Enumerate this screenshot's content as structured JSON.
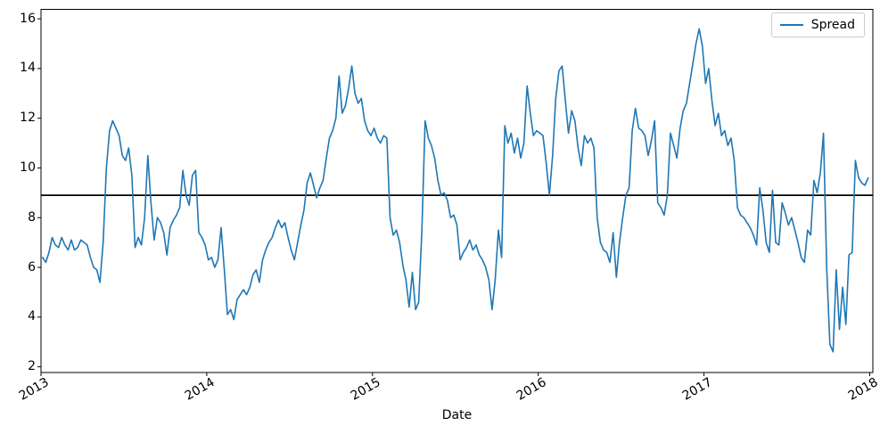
{
  "figure": {
    "xlabel": "Date",
    "legend": {
      "label": "Spread"
    },
    "background": "#ffffff",
    "spine_color": "#000000"
  },
  "chart_data": {
    "type": "line",
    "title": "",
    "xlabel": "Date",
    "ylabel": "",
    "grid": false,
    "legend_position": "upper right",
    "x_axis": {
      "min": 2013.0,
      "max": 2018.019,
      "ticks": [
        2013,
        2014,
        2015,
        2016,
        2017,
        2018
      ],
      "tick_labels": [
        "2013",
        "2014",
        "2015",
        "2016",
        "2017",
        "2018"
      ],
      "tick_rotation_deg": 30
    },
    "y_axis": {
      "min": 1.77,
      "max": 16.38,
      "ticks": [
        2,
        4,
        6,
        8,
        10,
        12,
        14,
        16
      ],
      "tick_labels": [
        "2",
        "4",
        "6",
        "8",
        "10",
        "12",
        "14",
        "16"
      ]
    },
    "hline": {
      "y": 8.9,
      "color": "#000000",
      "width": 1.8
    },
    "series": [
      {
        "name": "Spread",
        "color": "#1f77b4",
        "line_width": 1.6,
        "x_start_year": 2013.0,
        "x_step_years": 0.019231,
        "values": [
          6.4,
          6.2,
          6.6,
          7.2,
          6.9,
          6.8,
          7.2,
          6.9,
          6.7,
          7.1,
          6.7,
          6.8,
          7.1,
          7.0,
          6.9,
          6.4,
          6.0,
          5.9,
          5.4,
          7.0,
          10.0,
          11.5,
          11.9,
          11.6,
          11.3,
          10.5,
          10.3,
          10.8,
          9.7,
          6.8,
          7.2,
          6.9,
          8.0,
          10.5,
          8.6,
          7.1,
          8.0,
          7.8,
          7.4,
          6.5,
          7.6,
          7.9,
          8.1,
          8.4,
          9.9,
          8.9,
          8.5,
          9.7,
          9.9,
          7.4,
          7.2,
          6.9,
          6.3,
          6.4,
          6.0,
          6.3,
          7.6,
          5.9,
          4.1,
          4.3,
          3.9,
          4.7,
          4.9,
          5.1,
          4.9,
          5.2,
          5.7,
          5.9,
          5.4,
          6.3,
          6.7,
          7.0,
          7.2,
          7.6,
          7.9,
          7.6,
          7.8,
          7.2,
          6.7,
          6.3,
          7.0,
          7.7,
          8.3,
          9.4,
          9.8,
          9.3,
          8.8,
          9.2,
          9.5,
          10.4,
          11.2,
          11.5,
          12.0,
          13.7,
          12.2,
          12.5,
          13.2,
          14.1,
          13.0,
          12.6,
          12.8,
          11.9,
          11.5,
          11.3,
          11.6,
          11.2,
          11.0,
          11.3,
          11.2,
          8.0,
          7.3,
          7.5,
          7.0,
          6.1,
          5.5,
          4.4,
          5.8,
          4.3,
          4.6,
          7.5,
          11.9,
          11.2,
          10.9,
          10.4,
          9.5,
          8.9,
          9.0,
          8.7,
          8.0,
          8.1,
          7.7,
          6.3,
          6.6,
          6.8,
          7.1,
          6.7,
          6.9,
          6.5,
          6.3,
          6.0,
          5.5,
          4.3,
          5.5,
          7.5,
          6.4,
          11.7,
          11.0,
          11.4,
          10.6,
          11.2,
          10.4,
          11.0,
          13.3,
          12.2,
          11.3,
          11.5,
          11.4,
          11.3,
          10.2,
          8.9,
          10.5,
          12.8,
          13.9,
          14.1,
          12.7,
          11.4,
          12.3,
          11.9,
          10.8,
          10.1,
          11.3,
          11.0,
          11.2,
          10.8,
          8.0,
          7.0,
          6.7,
          6.6,
          6.2,
          7.4,
          5.6,
          7.0,
          8.0,
          8.9,
          9.2,
          11.5,
          12.4,
          11.6,
          11.5,
          11.3,
          10.5,
          11.1,
          11.9,
          8.6,
          8.4,
          8.1,
          8.9,
          11.4,
          10.9,
          10.4,
          11.6,
          12.3,
          12.6,
          13.4,
          14.2,
          15.0,
          15.6,
          14.9,
          13.4,
          14.0,
          12.7,
          11.7,
          12.2,
          11.3,
          11.5,
          10.9,
          11.2,
          10.3,
          8.4,
          8.1,
          8.0,
          7.8,
          7.6,
          7.3,
          6.9,
          9.2,
          8.3,
          7.0,
          6.6,
          9.1,
          7.0,
          6.9,
          8.6,
          8.2,
          7.7,
          8.0,
          7.5,
          7.0,
          6.4,
          6.2,
          7.5,
          7.3,
          9.5,
          9.0,
          9.8,
          11.4,
          6.0,
          2.9,
          2.6,
          5.9,
          3.5,
          5.2,
          3.7,
          6.5,
          6.6,
          10.3,
          9.6,
          9.4,
          9.3,
          9.6
        ]
      }
    ]
  }
}
